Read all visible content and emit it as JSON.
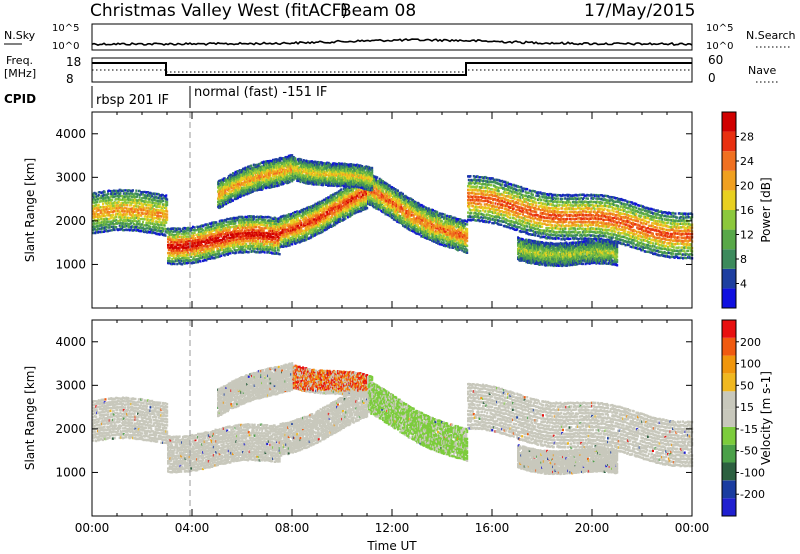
{
  "header": {
    "site": "Christmas Valley West (fitACF)",
    "beam": "Beam 08",
    "date": "17/May/2015"
  },
  "noise_panel": {
    "left_label": "N.Sky",
    "right_label": "N.Search",
    "ticks": [
      "10^5",
      "10^0"
    ]
  },
  "freq_panel": {
    "left_label_1": "Freq.",
    "left_label_2": "[MHz]",
    "left_ticks": [
      "18",
      "8"
    ],
    "right_ticks": [
      "60",
      "0"
    ],
    "right_label": "Nave"
  },
  "cpid_panel": {
    "label": "CPID",
    "modes": [
      "rbsp 201 IF",
      "normal (fast) -151 IF"
    ]
  },
  "colors": {
    "power": [
      "#1010e0",
      "#1e3fa0",
      "#3c8a5c",
      "#58a848",
      "#8cc83c",
      "#e8d020",
      "#f0a020",
      "#f07020",
      "#e83010",
      "#d00000"
    ],
    "velocity": [
      "#e81010",
      "#f05a10",
      "#f0960c",
      "#f0b820",
      "#c8c8bc",
      "#c8c8bc",
      "#7ccc3c",
      "#4aa048",
      "#2c6040",
      "#1a3ca0",
      "#2020d0"
    ]
  },
  "chart_data": [
    {
      "type": "heatmap",
      "title": "",
      "xlabel": "",
      "ylabel": "Slant Range [km]",
      "x_range_hours": [
        0,
        24
      ],
      "ylim": [
        0,
        4500
      ],
      "y_ticks": [
        "1000",
        "2000",
        "3000",
        "4000"
      ],
      "colorbar": {
        "label": "Power [dB]",
        "range": [
          0,
          32
        ],
        "ticks": [
          "4",
          "8",
          "12",
          "16",
          "20",
          "24",
          "28"
        ]
      }
    },
    {
      "type": "heatmap",
      "title": "",
      "xlabel": "Time UT",
      "ylabel": "Slant Range [km]",
      "x_range_hours": [
        0,
        24
      ],
      "x_ticks": [
        "00:00",
        "04:00",
        "08:00",
        "12:00",
        "16:00",
        "20:00",
        "00:00"
      ],
      "ylim": [
        0,
        4500
      ],
      "y_ticks": [
        "1000",
        "2000",
        "3000",
        "4000"
      ],
      "colorbar": {
        "label": "Velocity [m s-1]",
        "range": [
          -250,
          250
        ],
        "ticks": [
          "200",
          "100",
          "50",
          "15",
          "-15",
          "-50",
          "-100",
          "-200"
        ]
      }
    }
  ]
}
